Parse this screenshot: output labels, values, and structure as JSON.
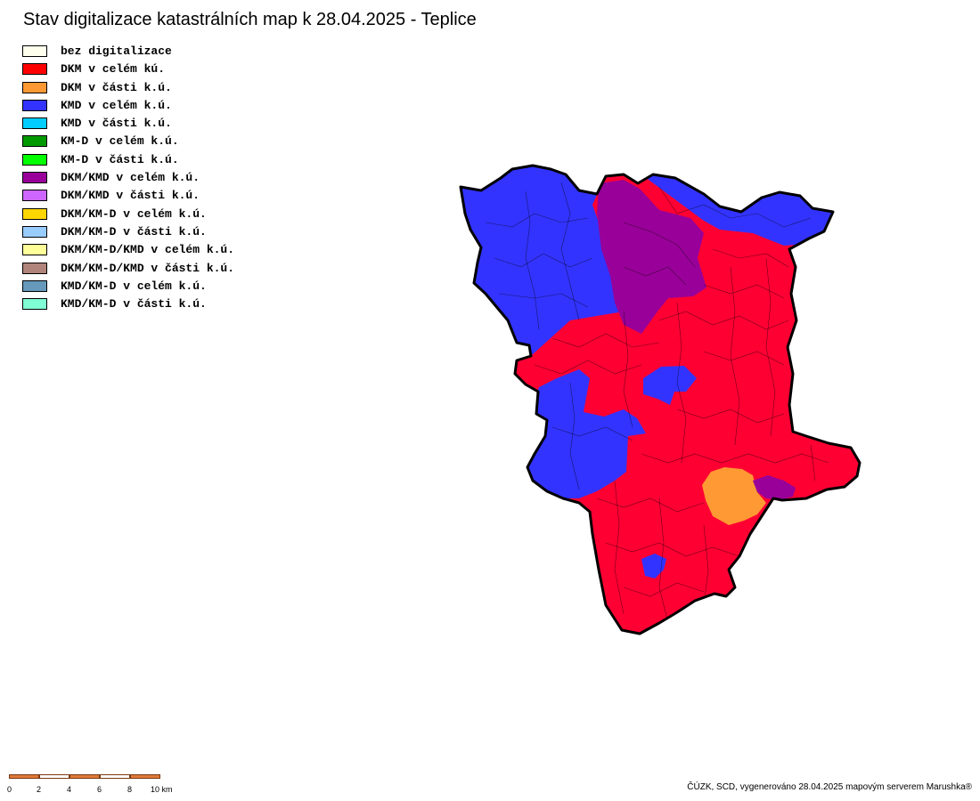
{
  "title": "Stav digitalizace katastrálních map k 28.04.2025 - Teplice",
  "legend": [
    {
      "label": "bez digitalizace",
      "color": "#ffffee"
    },
    {
      "label": "DKM v celém kú.",
      "color": "#ff0000"
    },
    {
      "label": "DKM v části k.ú.",
      "color": "#ff9933"
    },
    {
      "label": "KMD v celém k.ú.",
      "color": "#3333ff"
    },
    {
      "label": "KMD v části k.ú.",
      "color": "#00ccff"
    },
    {
      "label": "KM-D v celém k.ú.",
      "color": "#009900"
    },
    {
      "label": "KM-D v části k.ú.",
      "color": "#00ff00"
    },
    {
      "label": "DKM/KMD v celém k.ú.",
      "color": "#990099"
    },
    {
      "label": "DKM/KMD v části k.ú.",
      "color": "#cc66ff"
    },
    {
      "label": "DKM/KM-D v celém k.ú.",
      "color": "#ffd700"
    },
    {
      "label": "DKM/KM-D v části k.ú.",
      "color": "#99ccff"
    },
    {
      "label": "DKM/KM-D/KMD v celém k.ú.",
      "color": "#ffff99"
    },
    {
      "label": "DKM/KM-D/KMD v části k.ú.",
      "color": "#b0847a"
    },
    {
      "label": "KMD/KM-D v celém k.ú.",
      "color": "#6699bb"
    },
    {
      "label": "KMD/KM-D v části k.ú.",
      "color": "#80ffd4"
    }
  ],
  "map_colors": {
    "dkm_celem": "#ff0033",
    "kmd_celem": "#3333ff",
    "dkm_kmd_celem": "#990099",
    "dkm_casti": "#ff9933",
    "border": "#000000"
  },
  "scalebar": {
    "ticks": [
      "0",
      "2",
      "4",
      "6",
      "8",
      "10 km"
    ],
    "fill_color": "#e07a3a"
  },
  "footer": "ČÚZK, SCD, vygenerováno 28.04.2025 mapovým serverem Marushka®"
}
